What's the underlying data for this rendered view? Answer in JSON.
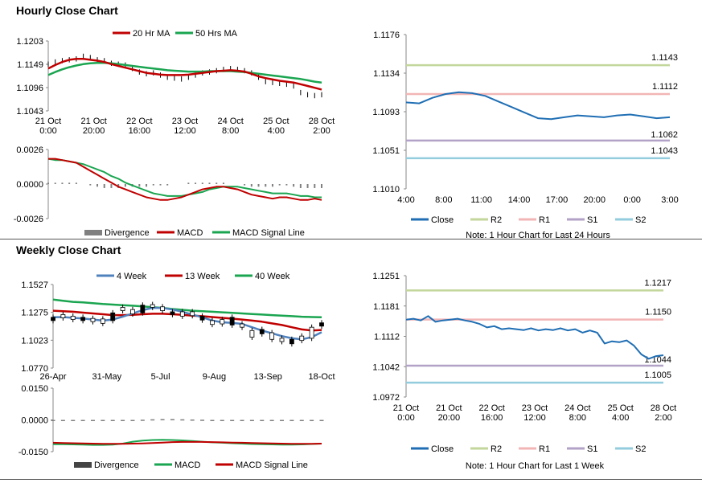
{
  "hourly_section": {
    "title": "Hourly Close Chart"
  },
  "weekly_section": {
    "title": "Weekly Close Chart"
  },
  "colors": {
    "ma_short": "#c00000",
    "ma_long": "#1aa550",
    "price": "#000000",
    "divergence": "#808080",
    "week4": "#4f81bd",
    "close": "#1f6eb4",
    "r2": "#c3d69b",
    "r1": "#f2b5b5",
    "s1": "#b3a2c7",
    "s2": "#93cddd"
  },
  "chart_data": [
    {
      "id": "hourly-price",
      "type": "line",
      "title": "",
      "legend": [
        "20 Hr MA",
        "50 Hrs MA"
      ],
      "y_ticks": [
        "1.1203",
        "1.1149",
        "1.1096",
        "1.1043"
      ],
      "ylim": [
        1.1043,
        1.1203
      ],
      "x_ticks": [
        [
          "21 Oct",
          "0:00"
        ],
        [
          "21 Oct",
          "20:00"
        ],
        [
          "22 Oct",
          "16:00"
        ],
        [
          "23 Oct",
          "12:00"
        ],
        [
          "24 Oct",
          "8:00"
        ],
        [
          "25 Oct",
          "4:00"
        ],
        [
          "28 Oct",
          "2:00"
        ]
      ],
      "price": [
        1.115,
        1.1155,
        1.1158,
        1.116,
        1.1162,
        1.1168,
        1.1165,
        1.116,
        1.1158,
        1.1152,
        1.115,
        1.1148,
        1.114,
        1.1132,
        1.1128,
        1.113,
        1.1125,
        1.112,
        1.1118,
        1.1116,
        1.112,
        1.1125,
        1.113,
        1.1132,
        1.1135,
        1.1138,
        1.114,
        1.1138,
        1.1135,
        1.113,
        1.112,
        1.111,
        1.1108,
        1.1106,
        1.1104,
        1.11,
        1.1085,
        1.108,
        1.1078,
        1.108
      ],
      "series": [
        {
          "name": "20 Hr MA",
          "values": [
            1.114,
            1.1148,
            1.1155,
            1.116,
            1.1162,
            1.1162,
            1.116,
            1.1158,
            1.1155,
            1.115,
            1.1146,
            1.1142,
            1.1138,
            1.1134,
            1.113,
            1.1128,
            1.1126,
            1.1125,
            1.1125,
            1.1125,
            1.1126,
            1.1128,
            1.113,
            1.1132,
            1.1134,
            1.1135,
            1.1136,
            1.1135,
            1.1133,
            1.1128,
            1.1122,
            1.1118,
            1.1115,
            1.1112,
            1.111,
            1.1108,
            1.1104,
            1.11,
            1.1096,
            1.1092
          ]
        },
        {
          "name": "50 Hrs MA",
          "values": [
            1.1125,
            1.1132,
            1.1138,
            1.1143,
            1.1147,
            1.115,
            1.1152,
            1.1153,
            1.1153,
            1.1152,
            1.115,
            1.1148,
            1.1146,
            1.1144,
            1.1142,
            1.114,
            1.1138,
            1.1136,
            1.1135,
            1.1134,
            1.1133,
            1.1133,
            1.1133,
            1.1134,
            1.1134,
            1.1134,
            1.1134,
            1.1133,
            1.1132,
            1.113,
            1.1128,
            1.1126,
            1.1124,
            1.1122,
            1.112,
            1.1118,
            1.1116,
            1.1113,
            1.111,
            1.1108
          ]
        }
      ]
    },
    {
      "id": "hourly-macd",
      "type": "line",
      "legend": [
        "Divergence",
        "MACD",
        "MACD Signal Line"
      ],
      "y_ticks": [
        "0.0026",
        "0.0000",
        "-0.0026"
      ],
      "ylim": [
        -0.0026,
        0.0026
      ],
      "divergence": [
        0.0001,
        0.0001,
        0.0001,
        0.0001,
        0.0001,
        0,
        -0.0001,
        -0.0002,
        -0.0003,
        -0.0003,
        -0.0003,
        -0.0002,
        -0.0002,
        -0.0002,
        -0.0002,
        -0.0001,
        -0.0001,
        -0.0001,
        0,
        0,
        0.0001,
        0.0001,
        0.0001,
        0.0001,
        0.0001,
        0.0001,
        0,
        0,
        -0.0001,
        -0.0002,
        -0.0002,
        -0.0002,
        -0.0002,
        -0.0001,
        -0.0001,
        -0.0002,
        -0.0003,
        -0.0003,
        -0.0003,
        -0.0003
      ],
      "series": [
        {
          "name": "MACD",
          "values": [
            0.0019,
            0.0019,
            0.0018,
            0.0017,
            0.0016,
            0.0013,
            0.001,
            0.0007,
            0.0004,
            0.0001,
            -0.0002,
            -0.0004,
            -0.0006,
            -0.0008,
            -0.001,
            -0.0011,
            -0.0012,
            -0.0012,
            -0.0011,
            -0.001,
            -0.0008,
            -0.0006,
            -0.0004,
            -0.0003,
            -0.0002,
            -0.0002,
            -0.0003,
            -0.0004,
            -0.0006,
            -0.0008,
            -0.0009,
            -0.001,
            -0.0011,
            -0.001,
            -0.001,
            -0.0011,
            -0.0012,
            -0.0012,
            -0.0011,
            -0.0012
          ]
        },
        {
          "name": "MACD Signal Line",
          "values": [
            0.0019,
            0.0018,
            0.0018,
            0.0017,
            0.0016,
            0.0015,
            0.0013,
            0.0011,
            0.0009,
            0.0006,
            0.0004,
            0.0001,
            -0.0001,
            -0.0003,
            -0.0005,
            -0.0007,
            -0.0008,
            -0.0009,
            -0.0009,
            -0.0009,
            -0.0008,
            -0.0007,
            -0.0006,
            -0.0004,
            -0.0003,
            -0.0002,
            -0.0002,
            -0.0002,
            -0.0003,
            -0.0004,
            -0.0005,
            -0.0006,
            -0.0007,
            -0.0007,
            -0.0007,
            -0.0008,
            -0.0009,
            -0.0009,
            -0.001,
            -0.001
          ]
        }
      ]
    },
    {
      "id": "hourly-close-levels",
      "type": "line",
      "y_ticks": [
        "1.1176",
        "1.1134",
        "1.1093",
        "1.1051",
        "1.1010"
      ],
      "ylim": [
        1.101,
        1.1176
      ],
      "x_ticks": [
        "4:00",
        "8:00",
        "11:00",
        "14:00",
        "17:00",
        "20:00",
        "0:00",
        "3:00"
      ],
      "close": [
        1.1103,
        1.1102,
        1.1108,
        1.1112,
        1.1114,
        1.1113,
        1.111,
        1.1104,
        1.1098,
        1.1092,
        1.1086,
        1.1085,
        1.1087,
        1.1089,
        1.1088,
        1.1087,
        1.1089,
        1.109,
        1.1088,
        1.1086,
        1.1087
      ],
      "levels": [
        {
          "name": "R2",
          "value": 1.1143,
          "label": "1.1143"
        },
        {
          "name": "R1",
          "value": 1.1112,
          "label": "1.1112"
        },
        {
          "name": "S1",
          "value": 1.1062,
          "label": "1.1062"
        },
        {
          "name": "S2",
          "value": 1.1043,
          "label": "1.1043"
        }
      ],
      "legend": [
        "Close",
        "R2",
        "R1",
        "S1",
        "S2"
      ],
      "note": "Note: 1 Hour Chart for Last 24 Hours"
    },
    {
      "id": "weekly-price",
      "type": "line",
      "legend": [
        "4 Week",
        "13 Week",
        "40 Week"
      ],
      "y_ticks": [
        "1.1527",
        "1.1275",
        "1.1023",
        "1.0770"
      ],
      "ylim": [
        1.077,
        1.1527
      ],
      "x_ticks": [
        "26-Apr",
        "31-May",
        "5-Jul",
        "9-Aug",
        "13-Sep",
        "18-Oct"
      ],
      "candles": [
        [
          1.12,
          1.123
        ],
        [
          1.1225,
          1.1255
        ],
        [
          1.121,
          1.124
        ],
        [
          1.12,
          1.123
        ],
        [
          1.119,
          1.122
        ],
        [
          1.1175,
          1.1215
        ],
        [
          1.12,
          1.127
        ],
        [
          1.129,
          1.132
        ],
        [
          1.126,
          1.13
        ],
        [
          1.127,
          1.134
        ],
        [
          1.132,
          1.1345
        ],
        [
          1.129,
          1.1325
        ],
        [
          1.1255,
          1.128
        ],
        [
          1.124,
          1.128
        ],
        [
          1.1245,
          1.128
        ],
        [
          1.1205,
          1.124
        ],
        [
          1.1165,
          1.12
        ],
        [
          1.117,
          1.121
        ],
        [
          1.116,
          1.123
        ],
        [
          1.114,
          1.117
        ],
        [
          1.105,
          1.111
        ],
        [
          1.108,
          1.112
        ],
        [
          1.103,
          1.109
        ],
        [
          1.101,
          1.104
        ],
        [
          1.099,
          1.103
        ],
        [
          1.102,
          1.106
        ],
        [
          1.104,
          1.114
        ],
        [
          1.115,
          1.118
        ]
      ],
      "series": [
        {
          "name": "4 Week",
          "values": [
            1.123,
            1.1232,
            1.1225,
            1.122,
            1.121,
            1.12,
            1.121,
            1.1235,
            1.1265,
            1.1295,
            1.1315,
            1.1315,
            1.13,
            1.128,
            1.1255,
            1.123,
            1.12,
            1.1185,
            1.118,
            1.117,
            1.114,
            1.111,
            1.1085,
            1.106,
            1.104,
            1.103,
            1.105,
            1.1095
          ]
        },
        {
          "name": "13 Week",
          "values": [
            1.129,
            1.1285,
            1.128,
            1.1272,
            1.1265,
            1.1258,
            1.125,
            1.125,
            1.1252,
            1.1258,
            1.1262,
            1.1262,
            1.1258,
            1.1252,
            1.1245,
            1.124,
            1.1232,
            1.1225,
            1.1218,
            1.121,
            1.12,
            1.119,
            1.1175,
            1.116,
            1.114,
            1.112,
            1.111,
            1.1115
          ]
        },
        {
          "name": "40 Week",
          "values": [
            1.139,
            1.138,
            1.137,
            1.1365,
            1.1358,
            1.135,
            1.1345,
            1.134,
            1.1335,
            1.1328,
            1.1322,
            1.1315,
            1.1305,
            1.1298,
            1.129,
            1.1285,
            1.128,
            1.1275,
            1.127,
            1.1265,
            1.126,
            1.1255,
            1.125,
            1.1245,
            1.124,
            1.1235,
            1.1232,
            1.123
          ]
        }
      ]
    },
    {
      "id": "weekly-macd",
      "type": "line",
      "legend": [
        "Divergence",
        "MACD",
        "MACD Signal Line"
      ],
      "y_ticks": [
        "0.0150",
        "0.0000",
        "-0.0150"
      ],
      "ylim": [
        -0.015,
        0.015
      ],
      "divergence": [
        -0.0004,
        -0.0004,
        -0.0004,
        -0.0004,
        -0.0003,
        -0.0003,
        -0.0003,
        -0.0002,
        -0.0001,
        0.0001,
        0.0003,
        0.0004,
        0.0004,
        0.0003,
        0.0002,
        0.0001,
        0,
        -0.0001,
        -0.0002,
        -0.0002,
        -0.0003,
        -0.0003,
        -0.0003,
        -0.0002,
        -0.0002,
        -0.0001,
        -0.0001,
        -0.0001
      ],
      "series": [
        {
          "name": "MACD",
          "values": [
            -0.0115,
            -0.0115,
            -0.0116,
            -0.0117,
            -0.0118,
            -0.0118,
            -0.0117,
            -0.0112,
            -0.0103,
            -0.0098,
            -0.0095,
            -0.0094,
            -0.0095,
            -0.0097,
            -0.01,
            -0.0103,
            -0.0106,
            -0.0108,
            -0.011,
            -0.0112,
            -0.0114,
            -0.0115,
            -0.0116,
            -0.0117,
            -0.0117,
            -0.0116,
            -0.0114,
            -0.0112
          ]
        },
        {
          "name": "MACD Signal Line",
          "values": [
            -0.0108,
            -0.0109,
            -0.011,
            -0.0111,
            -0.0112,
            -0.0113,
            -0.0113,
            -0.0113,
            -0.0112,
            -0.0111,
            -0.0109,
            -0.0107,
            -0.0105,
            -0.0104,
            -0.0104,
            -0.0104,
            -0.0105,
            -0.0106,
            -0.0107,
            -0.0108,
            -0.0109,
            -0.011,
            -0.0111,
            -0.0112,
            -0.0113,
            -0.0113,
            -0.0113,
            -0.0112
          ]
        }
      ]
    },
    {
      "id": "weekly-close-levels",
      "type": "line",
      "y_ticks": [
        "1.1251",
        "1.1181",
        "1.1112",
        "1.1042",
        "1.0972"
      ],
      "ylim": [
        1.0972,
        1.1251
      ],
      "x_ticks": [
        [
          "21 Oct",
          "0:00"
        ],
        [
          "21 Oct",
          "20:00"
        ],
        [
          "22 Oct",
          "16:00"
        ],
        [
          "23 Oct",
          "12:00"
        ],
        [
          "24 Oct",
          "8:00"
        ],
        [
          "25 Oct",
          "4:00"
        ],
        [
          "28 Oct",
          "2:00"
        ]
      ],
      "close": [
        1.115,
        1.1152,
        1.1148,
        1.1158,
        1.1145,
        1.1148,
        1.115,
        1.1152,
        1.1148,
        1.1145,
        1.114,
        1.1132,
        1.1135,
        1.1128,
        1.113,
        1.1128,
        1.1126,
        1.113,
        1.1125,
        1.1128,
        1.1126,
        1.113,
        1.1125,
        1.1128,
        1.112,
        1.1125,
        1.112,
        1.1095,
        1.11,
        1.1098,
        1.1102,
        1.109,
        1.107,
        1.106,
        1.1066,
        1.1068
      ],
      "levels": [
        {
          "name": "R2",
          "value": 1.1217,
          "label": "1.1217"
        },
        {
          "name": "R1",
          "value": 1.115,
          "label": "1.1150"
        },
        {
          "name": "S1",
          "value": 1.1044,
          "label": "1.1044"
        },
        {
          "name": "S2",
          "value": 1.1005,
          "label": "1.1005"
        }
      ],
      "legend": [
        "Close",
        "R2",
        "R1",
        "S1",
        "S2"
      ],
      "note": "Note: 1 Hour Chart for Last 1 Week"
    }
  ]
}
